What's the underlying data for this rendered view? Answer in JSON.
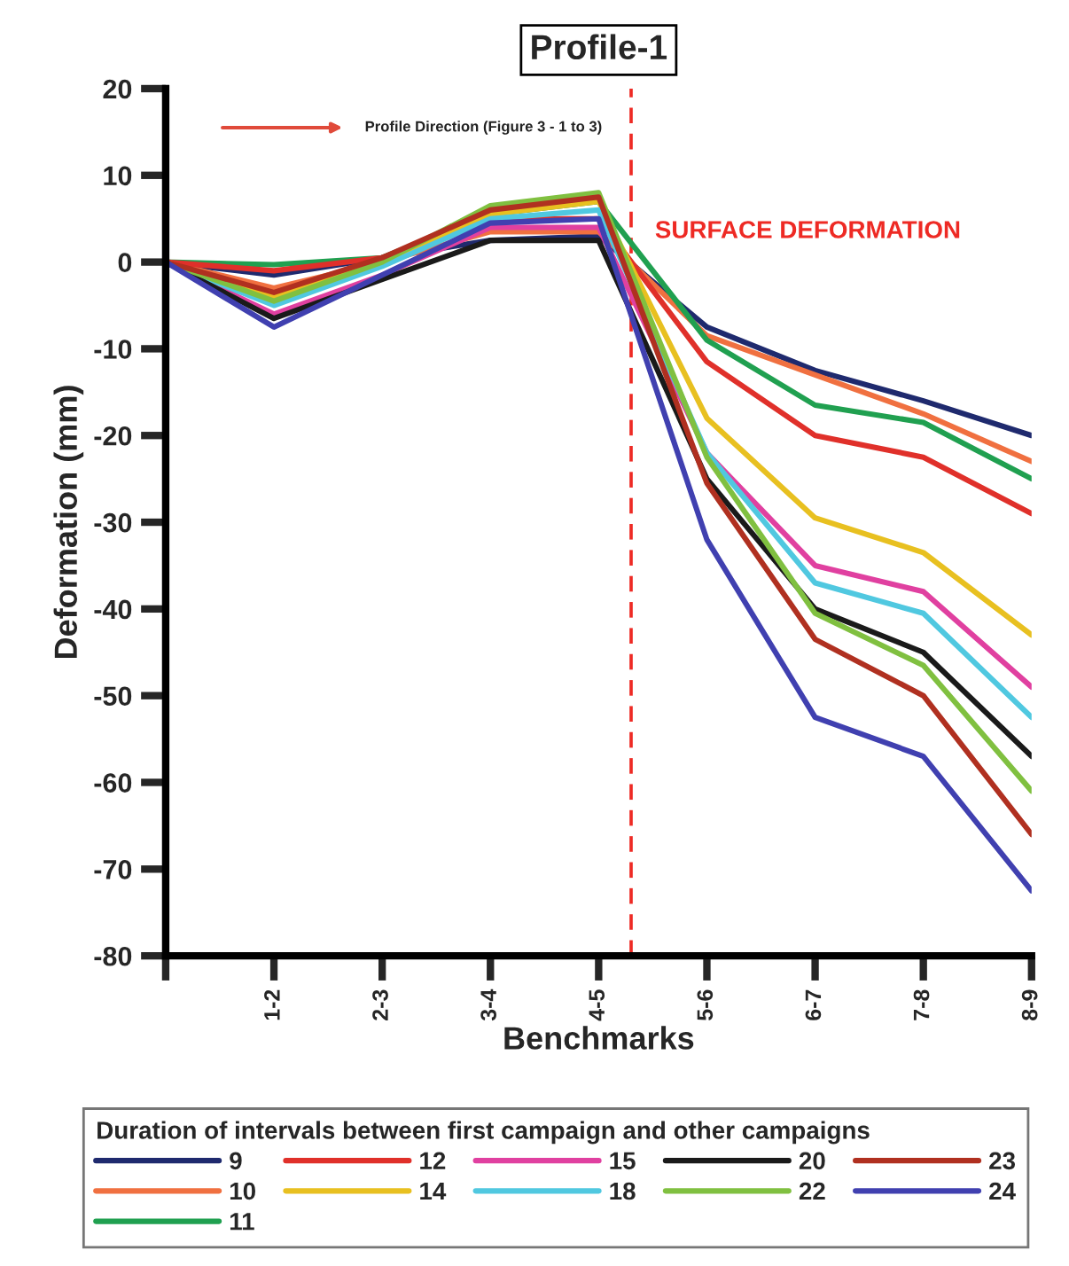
{
  "chart_data": {
    "type": "line",
    "title": "Profile-1",
    "xlabel": "Benchmarks",
    "ylabel": "Deformation (mm)",
    "legend_title": "Duration of intervals between first campaign and other campaigns",
    "legend": "bottom",
    "grid": false,
    "marker": "none",
    "line_style": "solid",
    "categories": [
      null,
      "1-2",
      "2-3",
      "3-4",
      "4-5",
      "5-6",
      "6-7",
      "7-8",
      "8-9"
    ],
    "ylim": [
      -80,
      20
    ],
    "yticks": [
      -80,
      -70,
      -60,
      -50,
      -40,
      -30,
      -20,
      -10,
      0,
      10,
      20
    ],
    "annotations": [
      "Profile Direction (Figure 3 - 1 to 3)",
      "SURFACE DEFORMATION"
    ],
    "series": [
      {
        "name": "9",
        "color": "#1f2a6e",
        "values": [
          0,
          -1.5,
          0.5,
          2.5,
          3,
          -7.5,
          -12.5,
          -16,
          -20
        ]
      },
      {
        "name": "10",
        "color": "#f07040",
        "values": [
          0,
          -3,
          0,
          3.5,
          3.5,
          -8.5,
          -13,
          -17.5,
          -23
        ]
      },
      {
        "name": "11",
        "color": "#20a050",
        "values": [
          0,
          -0.3,
          0.5,
          5.5,
          7,
          -9,
          -16.5,
          -18.5,
          -25
        ]
      },
      {
        "name": "12",
        "color": "#e0302a",
        "values": [
          0,
          -1,
          0.5,
          5,
          5,
          -11.5,
          -20,
          -22.5,
          -29
        ]
      },
      {
        "name": "14",
        "color": "#e8c020",
        "values": [
          0,
          -4,
          0,
          5.5,
          7,
          -18,
          -29.5,
          -33.5,
          -43
        ]
      },
      {
        "name": "15",
        "color": "#e040a0",
        "values": [
          0,
          -6,
          -1.5,
          4,
          4,
          -22,
          -35,
          -38,
          -49
        ]
      },
      {
        "name": "18",
        "color": "#50c8e0",
        "values": [
          0,
          -5,
          -0.5,
          5,
          6,
          -22,
          -37,
          -40.5,
          -52.5
        ]
      },
      {
        "name": "20",
        "color": "#1a1a1a",
        "values": [
          0,
          -6.5,
          -2,
          2.5,
          2.5,
          -25,
          -40,
          -45,
          -57
        ]
      },
      {
        "name": "22",
        "color": "#80c040",
        "values": [
          0,
          -4.5,
          0,
          6.5,
          8,
          -22.5,
          -40.5,
          -46.5,
          -61
        ]
      },
      {
        "name": "23",
        "color": "#b03020",
        "values": [
          0,
          -3.5,
          0.5,
          6,
          7.5,
          -25.5,
          -43.5,
          -50,
          -66
        ]
      },
      {
        "name": "24",
        "color": "#4040b0",
        "values": [
          0,
          -7.5,
          -1.5,
          4.5,
          5,
          -32,
          -52.5,
          -57,
          -72.5
        ]
      }
    ]
  }
}
